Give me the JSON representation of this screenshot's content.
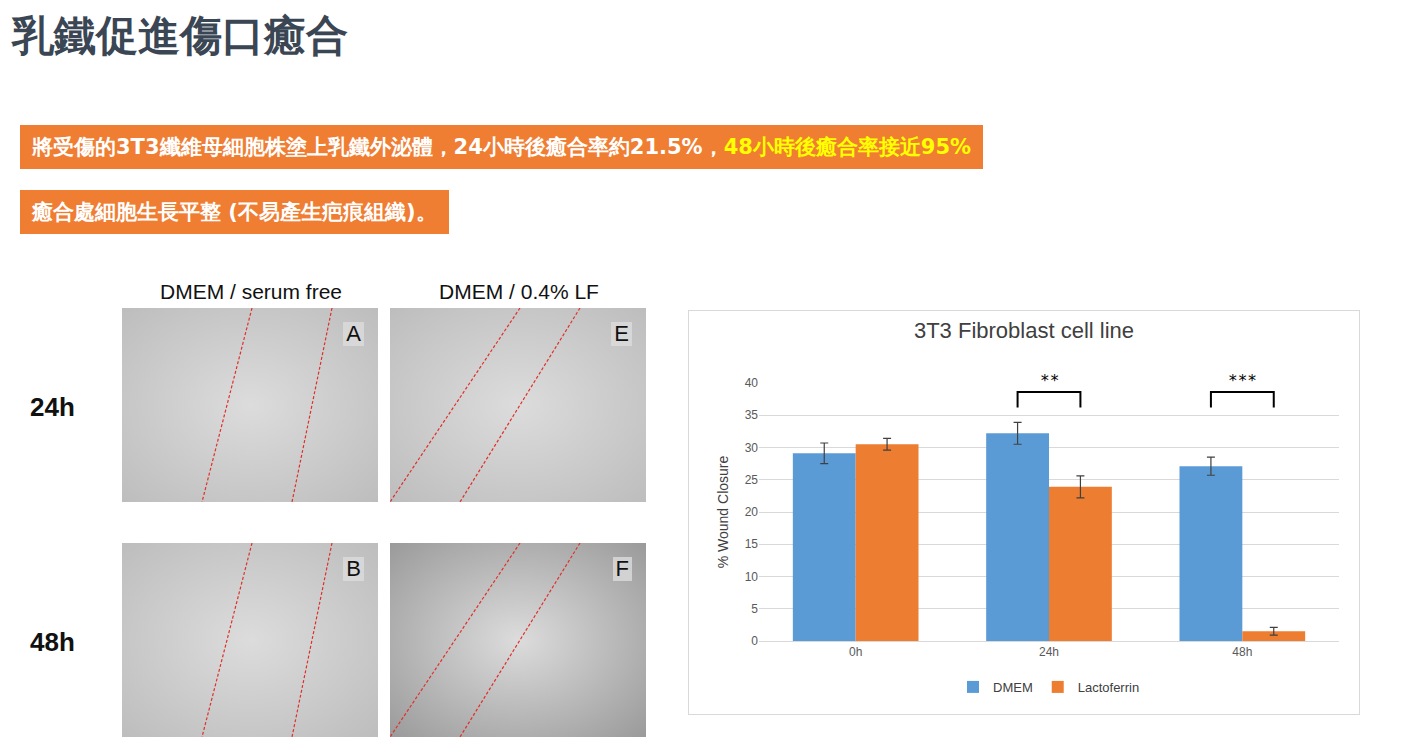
{
  "title": "乳鐵促進傷口癒合",
  "banners": [
    [
      {
        "text": "將受傷的3T3纖維母細胞株塗上乳鐵外泌體，24小時後癒合率約21.5%，",
        "color": "#ffffff"
      },
      {
        "text": "48小時後癒合率接近95%",
        "color": "#ffff00"
      }
    ],
    [
      {
        "text": "癒合處細胞生長平整 (不易產生疤痕組織)。",
        "color": "#ffffff"
      }
    ]
  ],
  "micrographs": {
    "columns": [
      "DMEM / serum free",
      "DMEM / 0.4% LF"
    ],
    "rows": [
      "24h",
      "48h"
    ],
    "panels": [
      [
        "A",
        "E"
      ],
      [
        "B",
        "F"
      ]
    ]
  },
  "chart_data": {
    "type": "bar",
    "title": "3T3 Fibroblast cell line",
    "y_label": "% Wound Closure",
    "categories": [
      "0h",
      "24h",
      "48h"
    ],
    "series": [
      {
        "name": "DMEM",
        "color": "#5b9bd5",
        "values": [
          29.1,
          32.2,
          27.1
        ],
        "errors": [
          1.6,
          1.7,
          1.4
        ]
      },
      {
        "name": "Lactoferrin",
        "color": "#ed7d31",
        "values": [
          30.5,
          23.9,
          1.5
        ],
        "errors": [
          0.9,
          1.7,
          0.6
        ]
      }
    ],
    "ylim": [
      0,
      40
    ],
    "yticks": [
      0,
      5,
      10,
      15,
      20,
      25,
      30,
      35,
      40
    ],
    "grid": true,
    "legend": "bottom",
    "annotations": [
      {
        "category": "24h",
        "text": "**"
      },
      {
        "category": "48h",
        "text": "***"
      }
    ]
  }
}
